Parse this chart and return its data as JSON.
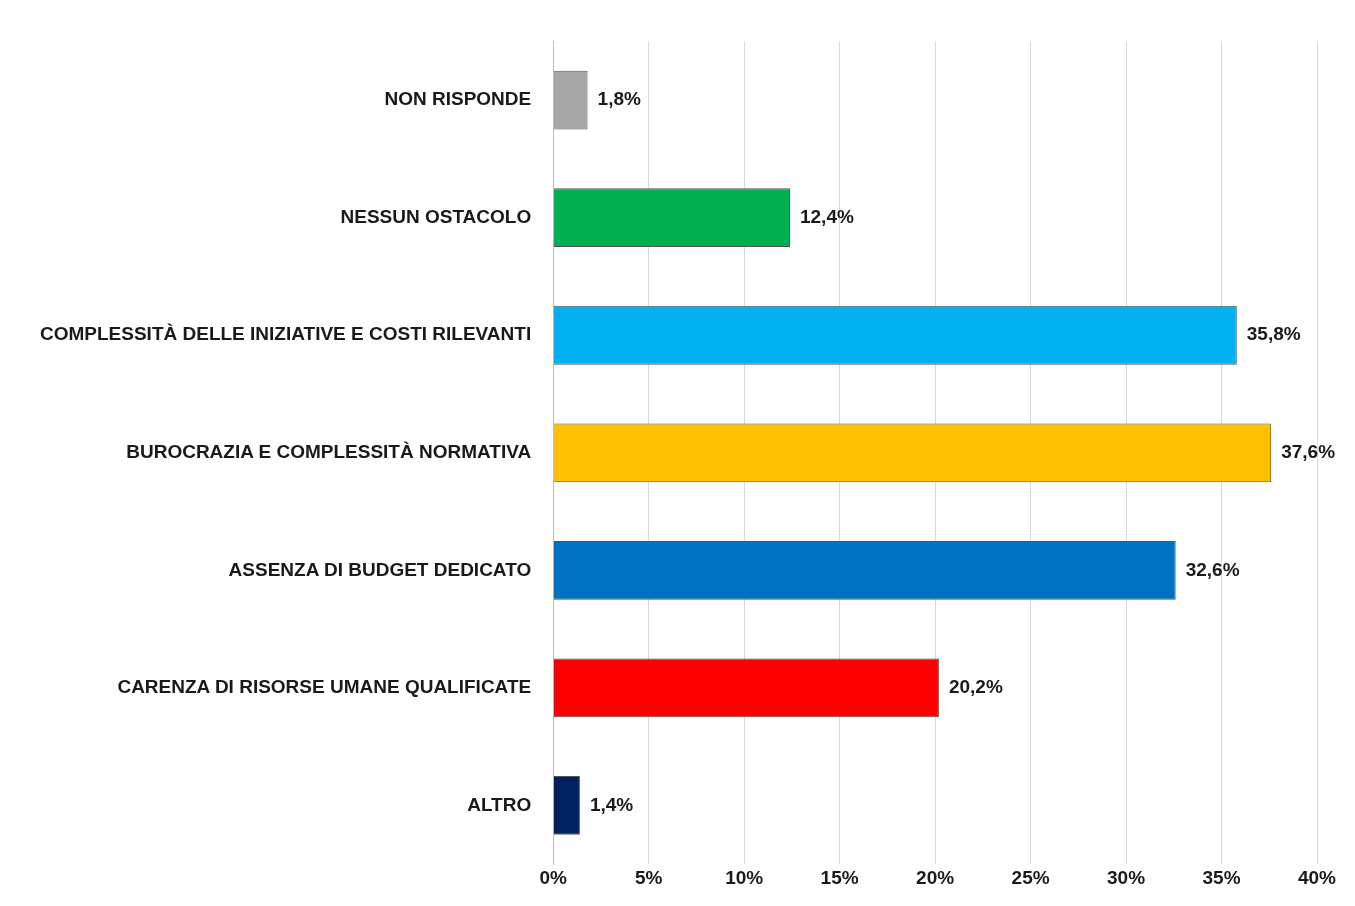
{
  "chart_data": {
    "type": "bar",
    "orientation": "horizontal",
    "categories": [
      "NON RISPONDE",
      "NESSUN OSTACOLO",
      "COMPLESSITÀ DELLE INIZIATIVE E COSTI RILEVANTI",
      "BUROCRAZIA E COMPLESSITÀ NORMATIVA",
      "ASSENZA DI BUDGET DEDICATO",
      "CARENZA DI RISORSE UMANE QUALIFICATE",
      "ALTRO"
    ],
    "values": [
      1.8,
      12.4,
      35.8,
      37.6,
      32.6,
      20.2,
      1.4
    ],
    "colors": [
      "#a6a6a6",
      "#00b050",
      "#00b0f0",
      "#ffc000",
      "#0070c0",
      "#ff0000",
      "#002060"
    ],
    "value_labels": [
      "1,8%",
      "12,4%",
      "35,8%",
      "37,6%",
      "32,6%",
      "20,2%",
      "1,4%"
    ],
    "xlim": [
      0,
      40
    ],
    "xticks": [
      {
        "value": 0,
        "label": "0%"
      },
      {
        "value": 5,
        "label": "5%"
      },
      {
        "value": 10,
        "label": "10%"
      },
      {
        "value": 15,
        "label": "15%"
      },
      {
        "value": 20,
        "label": "20%"
      },
      {
        "value": 25,
        "label": "25%"
      },
      {
        "value": 30,
        "label": "30%"
      },
      {
        "value": 35,
        "label": "35%"
      },
      {
        "value": 40,
        "label": "40%"
      }
    ],
    "grid": "x",
    "legend": false
  }
}
